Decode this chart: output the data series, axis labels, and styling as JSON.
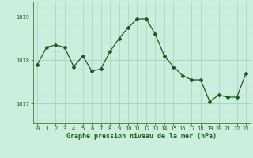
{
  "hours": [
    0,
    1,
    2,
    3,
    4,
    5,
    6,
    7,
    8,
    9,
    10,
    11,
    12,
    13,
    14,
    15,
    16,
    17,
    18,
    19,
    20,
    21,
    22,
    23
  ],
  "pressure": [
    1017.9,
    1018.3,
    1018.35,
    1018.3,
    1017.85,
    1018.1,
    1017.75,
    1017.8,
    1018.2,
    1018.5,
    1018.75,
    1018.95,
    1018.95,
    1018.6,
    1018.1,
    1017.85,
    1017.65,
    1017.55,
    1017.55,
    1017.05,
    1017.2,
    1017.15,
    1017.15,
    1017.7
  ],
  "line_color": "#1a5c1a",
  "marker": "D",
  "marker_size": 2.0,
  "bg_color": "#cceedd",
  "grid_color": "#aacccc",
  "grid_color_minor": "#bbdddd",
  "xlabel": "Graphe pression niveau de la mer (hPa)",
  "xlabel_color": "#1a5c1a",
  "yticks": [
    1017,
    1018,
    1019
  ],
  "ylim": [
    1016.55,
    1019.35
  ],
  "xlim": [
    -0.5,
    23.5
  ],
  "tick_color": "#1a5c1a",
  "spine_color": "#4a8c4a",
  "tick_fontsize": 5.0,
  "label_fontsize": 6.0
}
